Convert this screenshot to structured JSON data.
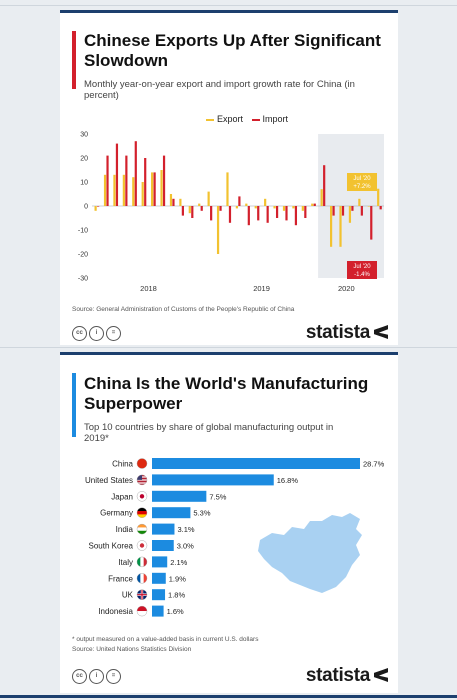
{
  "charts": [
    {
      "title": "Chinese Exports Up After Significant Slowdown",
      "subtitle": "Monthly year-on-year export and import growth rate for China (in percent)",
      "legend": {
        "export": "Export",
        "import": "Import"
      },
      "source": "Source: General Administration of Customs of the People's Republic of China",
      "brand": "statista",
      "annotations": {
        "export_label_month": "Jul '20",
        "export_label_value": "+7.2%",
        "import_label_month": "Jul '20",
        "import_label_value": "-1.4%"
      }
    },
    {
      "title": "China Is the World's Manufacturing Superpower",
      "subtitle": "Top 10 countries by share of global manufacturing output in 2019*",
      "footnote_1": "* output measured on a value-added basis in current U.S. dollars",
      "footnote_2": "Source: United Nations Statistics Division",
      "brand": "statista"
    }
  ],
  "chart_data": [
    {
      "type": "bar",
      "title": "Chinese Exports Up After Significant Slowdown",
      "ylim": [
        -30,
        30
      ],
      "yticks": [
        30,
        20,
        10,
        0,
        -10,
        -20,
        -30
      ],
      "year_labels": [
        "2018",
        "2019",
        "2020"
      ],
      "grid": false,
      "legend_position": "top",
      "colors": {
        "export": "#f2c230",
        "import": "#d3202c",
        "shade": "#e8ebef"
      },
      "series": [
        {
          "name": "Export",
          "values": [
            -2,
            13,
            13,
            13,
            12,
            10,
            14,
            15,
            5,
            3,
            -3,
            1,
            6,
            -20,
            14,
            -1,
            1,
            -1,
            3,
            -1,
            -2,
            -1,
            -2,
            1,
            7,
            -17,
            -17,
            -7,
            3,
            0,
            7.2
          ]
        },
        {
          "name": "Import",
          "values": [
            0,
            21,
            26,
            21,
            27,
            20,
            14,
            21,
            3,
            -4,
            -5,
            -2,
            -6,
            -2,
            -7,
            4,
            -8,
            -6,
            -7,
            -5,
            -6,
            -8,
            -5,
            1,
            17,
            -4,
            -4,
            -2,
            -4,
            -14,
            -1.4
          ]
        }
      ]
    },
    {
      "type": "bar",
      "title": "China Is the World's Manufacturing Superpower",
      "orientation": "horizontal",
      "categories": [
        "China",
        "United States",
        "Japan",
        "Germany",
        "India",
        "South Korea",
        "Italy",
        "France",
        "UK",
        "Indonesia"
      ],
      "values": [
        28.7,
        16.8,
        7.5,
        5.3,
        3.1,
        3.0,
        2.1,
        1.9,
        1.8,
        1.6
      ],
      "value_labels": [
        "28.7%",
        "16.8%",
        "7.5%",
        "5.3%",
        "3.1%",
        "3.0%",
        "2.1%",
        "1.9%",
        "1.8%",
        "1.6%"
      ],
      "colors": {
        "bar": "#1c8be0",
        "map": "#a9d1f2"
      }
    }
  ]
}
